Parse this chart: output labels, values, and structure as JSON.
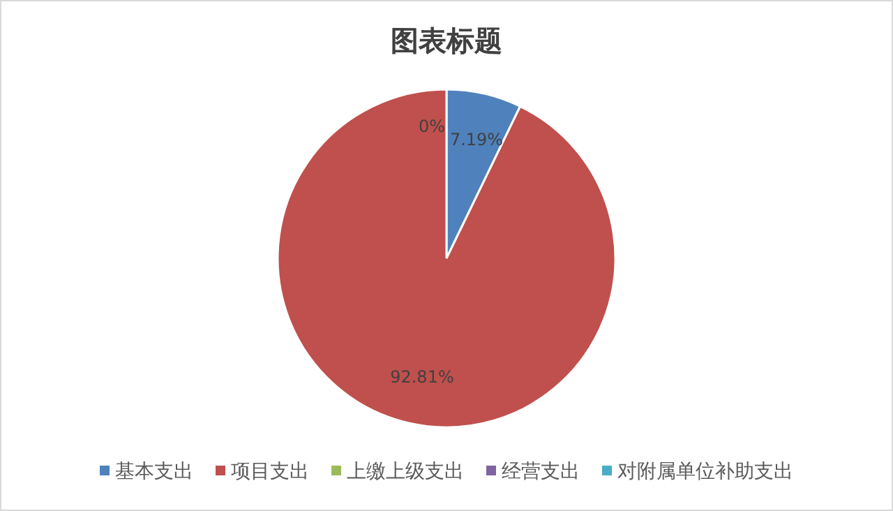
{
  "chart_data": {
    "type": "pie",
    "title": "图表标题",
    "categories": [
      "基本支出",
      "项目支出",
      "上缴上级支出",
      "经营支出",
      "对附属单位补助支出"
    ],
    "values": [
      7.19,
      92.81,
      0,
      0,
      0
    ],
    "colors": [
      "#4f81bd",
      "#c0504d",
      "#9bbb59",
      "#8064a2",
      "#4bacc6"
    ],
    "value_labels": [
      "7.19%",
      "92.81%",
      "0%",
      null,
      null
    ],
    "legend": "bottom"
  }
}
